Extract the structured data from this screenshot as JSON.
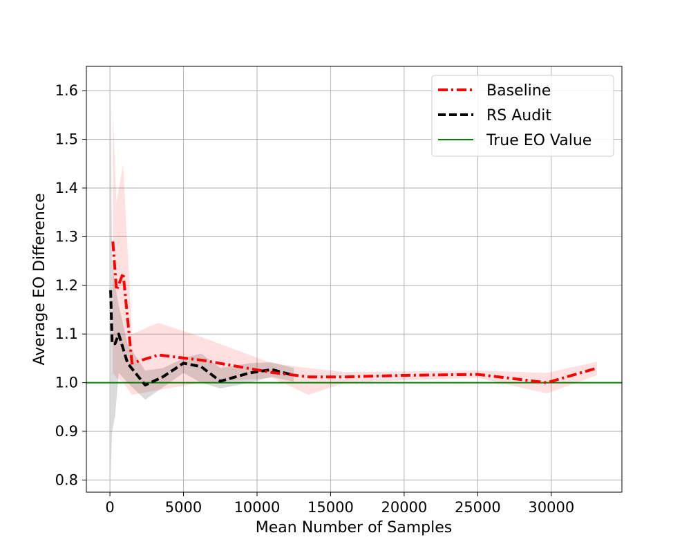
{
  "chart_data": {
    "type": "line",
    "xlabel": "Mean Number of Samples",
    "ylabel": "Average EO Difference",
    "xlim": [
      -1600,
      34800
    ],
    "ylim": [
      0.775,
      1.65
    ],
    "xticks": [
      0,
      5000,
      10000,
      15000,
      20000,
      25000,
      30000
    ],
    "yticks": [
      0.8,
      0.9,
      1.0,
      1.1,
      1.2,
      1.3,
      1.4,
      1.5,
      1.6
    ],
    "ytick_labels": [
      "0.8",
      "0.9",
      "1.0",
      "1.1",
      "1.2",
      "1.3",
      "1.4",
      "1.5",
      "1.6"
    ],
    "grid": true,
    "legend_position": "top-right",
    "series": [
      {
        "name": "Baseline",
        "color": "#ff0000",
        "style": "dashdot",
        "x": [
          200,
          450,
          900,
          1500,
          3300,
          6300,
          11000,
          13500,
          16000,
          20000,
          25000,
          29700,
          33100
        ],
        "y": [
          1.29,
          1.19,
          1.225,
          1.04,
          1.057,
          1.046,
          1.021,
          1.012,
          1.012,
          1.015,
          1.017,
          1.0,
          1.03
        ],
        "band_low": [
          1.02,
          1.01,
          1.0,
          0.975,
          0.985,
          1.0,
          1.01,
          0.975,
          1.0,
          1.005,
          1.01,
          0.978,
          1.015
        ],
        "band_high": [
          1.56,
          1.37,
          1.45,
          1.1,
          1.123,
          1.093,
          1.04,
          1.03,
          1.022,
          1.023,
          1.025,
          1.02,
          1.043
        ]
      },
      {
        "name": "RS Audit",
        "color": "#000000",
        "style": "dashed",
        "x": [
          50,
          150,
          350,
          600,
          1200,
          2400,
          3600,
          5000,
          6200,
          7500,
          9500,
          11000,
          12500
        ],
        "y": [
          1.19,
          1.08,
          1.08,
          1.1,
          1.04,
          0.995,
          1.012,
          1.04,
          1.033,
          1.003,
          1.02,
          1.027,
          1.015
        ],
        "band_low": [
          0.81,
          0.9,
          0.93,
          1.02,
          1.0,
          0.965,
          0.99,
          1.02,
          1.0,
          0.988,
          1.0,
          1.012,
          1.002
        ],
        "band_high": [
          1.6,
          1.25,
          1.2,
          1.16,
          1.08,
          1.025,
          1.03,
          1.05,
          1.06,
          1.03,
          1.04,
          1.042,
          1.03
        ]
      },
      {
        "name": "True EO Value",
        "color": "#008000",
        "style": "solid",
        "y": 1.0
      }
    ]
  }
}
